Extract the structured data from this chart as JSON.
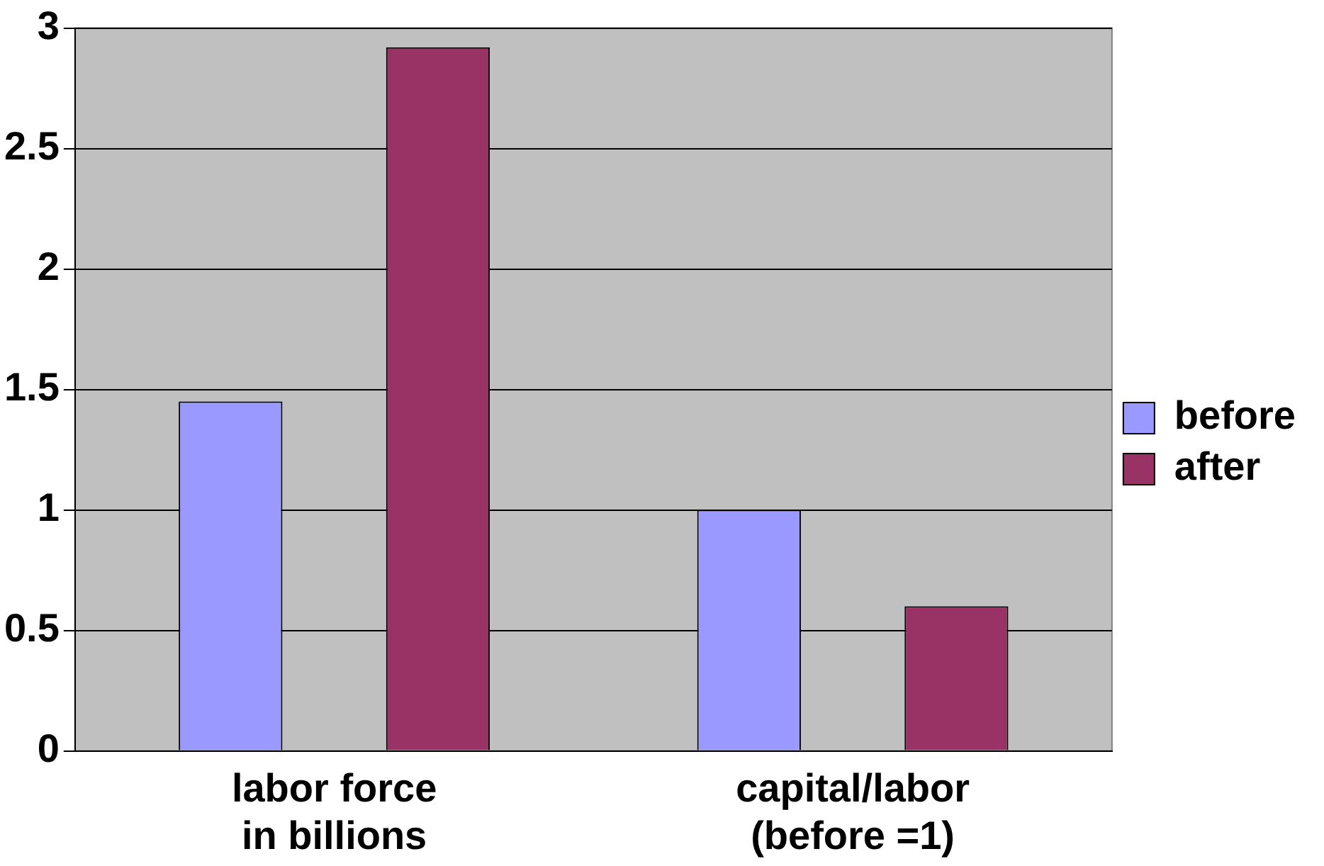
{
  "chart_data": {
    "type": "bar",
    "categories": [
      "labor force\nin billions",
      "capital/labor\n(before =1)"
    ],
    "series": [
      {
        "name": "before",
        "color": "#9999ff",
        "values": [
          1.45,
          1.0
        ]
      },
      {
        "name": "after",
        "color": "#993366",
        "values": [
          2.92,
          0.6
        ]
      }
    ],
    "ylim": [
      0,
      3
    ],
    "yticks": [
      0,
      0.5,
      1,
      1.5,
      2,
      2.5,
      3
    ],
    "grid": "y",
    "legend": "right"
  }
}
